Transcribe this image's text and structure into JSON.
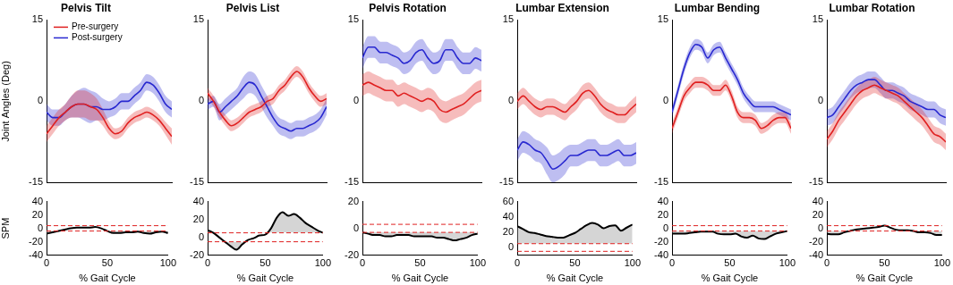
{
  "chart_data": [
    {
      "type": "line",
      "title": "Pelvis Tilt",
      "ylabel": "Joint Angles (Deg)",
      "legend": "upper left",
      "x": [
        0,
        5,
        10,
        15,
        20,
        25,
        30,
        35,
        40,
        45,
        50,
        55,
        60,
        65,
        70,
        75,
        80,
        85,
        90,
        95,
        100
      ],
      "xlim": [
        0,
        100
      ],
      "ylim": [
        -15,
        15
      ],
      "yticks": [
        -15,
        0,
        15
      ],
      "grid": false,
      "tick_labels": "y",
      "series": [
        {
          "name": "Pre-surgery",
          "color": "#e02020",
          "values": [
            -6,
            -4.5,
            -3,
            -2,
            -1,
            -0.5,
            -0.5,
            -1,
            -1.5,
            -3,
            -5,
            -6,
            -5.5,
            -4,
            -3,
            -2.5,
            -2,
            -2.5,
            -3.5,
            -5,
            -6.5
          ],
          "error": [
            1.5,
            1.5,
            1.5,
            1.5,
            2,
            2.5,
            2.5,
            2.5,
            2,
            1.5,
            1.2,
            1,
            1,
            1,
            1,
            1,
            1,
            1,
            1,
            1.2,
            1.5
          ]
        },
        {
          "name": "Post-surgery",
          "color": "#2828d0",
          "values": [
            -2,
            -3,
            -3,
            -2,
            -1,
            -0.5,
            -0.5,
            -1,
            -1,
            -1.5,
            -1.5,
            -1,
            0,
            0,
            1,
            2,
            3.5,
            3,
            1.5,
            -0.5,
            -1.5
          ],
          "error": [
            1.5,
            1.5,
            1.5,
            1.5,
            2,
            2.5,
            3,
            3,
            2.5,
            2,
            1.5,
            1.5,
            1.5,
            1.5,
            1.5,
            1.5,
            1.5,
            1.5,
            1.5,
            1.5,
            1.5
          ]
        }
      ]
    },
    {
      "type": "line",
      "title": "Pelvis List",
      "x": [
        0,
        5,
        10,
        15,
        20,
        25,
        30,
        35,
        40,
        45,
        50,
        55,
        60,
        65,
        70,
        75,
        80,
        85,
        90,
        95,
        100
      ],
      "xlim": [
        0,
        100
      ],
      "ylim": [
        -15,
        15
      ],
      "yticks": [
        -15,
        0,
        15
      ],
      "grid": false,
      "tick_labels": "y",
      "series": [
        {
          "color": "#e02020",
          "values": [
            1.5,
            0,
            -2,
            -3.5,
            -4.5,
            -4,
            -3,
            -2,
            -1.5,
            -1,
            0,
            0.5,
            2,
            3,
            4.5,
            5.5,
            4.5,
            2.5,
            1,
            0,
            0.5
          ],
          "error": [
            1,
            1,
            1,
            1,
            1,
            1,
            1,
            1,
            1,
            1,
            1,
            1,
            1,
            1,
            1,
            1,
            1,
            1,
            1,
            1,
            1
          ]
        },
        {
          "color": "#2828d0",
          "values": [
            -0.5,
            0,
            -2,
            -1,
            0,
            1,
            2.5,
            3.5,
            3,
            1,
            -1,
            -3,
            -4.5,
            -5,
            -5.5,
            -5,
            -5,
            -4.5,
            -4,
            -3,
            -1
          ],
          "error": [
            1,
            1,
            1.5,
            1.5,
            1.5,
            1.5,
            2,
            2,
            2,
            2,
            2,
            1.5,
            1.5,
            1.5,
            1.5,
            1.5,
            1.5,
            1.5,
            1.5,
            1.5,
            1.5
          ]
        }
      ]
    },
    {
      "type": "line",
      "title": "Pelvis Rotation",
      "x": [
        0,
        5,
        10,
        15,
        20,
        25,
        30,
        35,
        40,
        45,
        50,
        55,
        60,
        65,
        70,
        75,
        80,
        85,
        90,
        95,
        100
      ],
      "xlim": [
        0,
        100
      ],
      "ylim": [
        -15,
        15
      ],
      "yticks": [
        -15,
        0,
        15
      ],
      "grid": false,
      "tick_labels": "y",
      "series": [
        {
          "color": "#e02020",
          "values": [
            3,
            3.5,
            3,
            2.5,
            2,
            2,
            1,
            1.5,
            1,
            0.5,
            0,
            0.5,
            0,
            -1.5,
            -2,
            -1.5,
            -1,
            -0.5,
            0.5,
            1.5,
            2
          ],
          "error": [
            2,
            2,
            2,
            2,
            2,
            2,
            2,
            2,
            2,
            2,
            2,
            2,
            2,
            2,
            2,
            2,
            2,
            2,
            2,
            2,
            2
          ]
        },
        {
          "color": "#2828d0",
          "values": [
            8,
            10,
            10,
            9,
            9,
            8.5,
            8,
            7,
            7.5,
            9,
            9.5,
            8,
            7,
            7.5,
            9.5,
            9.5,
            8,
            7,
            7,
            8,
            7.5
          ],
          "error": [
            2,
            2,
            2,
            2,
            2,
            2,
            2,
            2,
            2,
            2,
            2,
            2,
            2,
            2,
            2,
            2,
            2,
            2,
            2,
            2,
            2
          ]
        }
      ]
    },
    {
      "type": "line",
      "title": "Lumbar Extension",
      "x": [
        0,
        5,
        10,
        15,
        20,
        25,
        30,
        35,
        40,
        45,
        50,
        55,
        60,
        65,
        70,
        75,
        80,
        85,
        90,
        95,
        100
      ],
      "xlim": [
        0,
        100
      ],
      "ylim": [
        -15,
        15
      ],
      "yticks": [
        -15,
        0,
        15
      ],
      "grid": false,
      "tick_labels": "y",
      "series": [
        {
          "color": "#e02020",
          "values": [
            0,
            1,
            0,
            -1,
            -1.5,
            -1,
            -1,
            -1.5,
            -2,
            -1,
            0,
            1.5,
            2,
            1,
            -0.5,
            -1.5,
            -2,
            -2.5,
            -2.5,
            -1.5,
            -0.5
          ],
          "error": [
            1.5,
            1.5,
            1.5,
            1.5,
            1.5,
            1.5,
            1.5,
            1.5,
            1.5,
            1.5,
            1.5,
            1.5,
            1.5,
            1.5,
            1.5,
            1.5,
            1.5,
            1.5,
            1.5,
            1.5,
            1.5
          ]
        },
        {
          "color": "#2828d0",
          "values": [
            -9,
            -7.5,
            -8,
            -9,
            -9.5,
            -11,
            -12.5,
            -12,
            -11,
            -10,
            -10,
            -9.5,
            -9,
            -9,
            -10,
            -10,
            -9.5,
            -9,
            -10,
            -10,
            -9.5
          ],
          "error": [
            2,
            2,
            2,
            2,
            2,
            2.5,
            2.5,
            2.5,
            2.5,
            2,
            2,
            2,
            2,
            2,
            2,
            2,
            2,
            2,
            2,
            2,
            2
          ]
        }
      ]
    },
    {
      "type": "line",
      "title": "Lumbar Bending",
      "x": [
        0,
        5,
        10,
        15,
        20,
        25,
        30,
        35,
        40,
        45,
        50,
        55,
        60,
        65,
        70,
        75,
        80,
        85,
        90,
        95,
        100
      ],
      "xlim": [
        0,
        100
      ],
      "ylim": [
        -15,
        15
      ],
      "yticks": [
        -15,
        0,
        15
      ],
      "grid": false,
      "tick_labels": "y",
      "series": [
        {
          "color": "#e02020",
          "values": [
            -5,
            -2,
            1,
            2.5,
            3.5,
            3.5,
            3,
            2,
            2,
            3,
            1,
            -2,
            -3,
            -3,
            -3.5,
            -5,
            -4.5,
            -3.5,
            -3,
            -3,
            -5
          ],
          "error": [
            1,
            1,
            1,
            1,
            1,
            1,
            1,
            1,
            1,
            1,
            1,
            1,
            1,
            1,
            1,
            1,
            1,
            1,
            1,
            1,
            1
          ]
        },
        {
          "color": "#2828d0",
          "values": [
            -2,
            2,
            6,
            9,
            10.5,
            10,
            8,
            9.5,
            10,
            8,
            6,
            4,
            1.5,
            0,
            -1,
            -1,
            -1,
            -1,
            -1.5,
            -2,
            -2.5
          ],
          "error": [
            1,
            1,
            1,
            1,
            1,
            1,
            1,
            1,
            1,
            1,
            1,
            1,
            1,
            1,
            1,
            1,
            1,
            1,
            1,
            1,
            1
          ]
        }
      ]
    },
    {
      "type": "line",
      "title": "Lumbar Rotation",
      "x": [
        0,
        5,
        10,
        15,
        20,
        25,
        30,
        35,
        40,
        45,
        50,
        55,
        60,
        65,
        70,
        75,
        80,
        85,
        90,
        95,
        100
      ],
      "xlim": [
        0,
        100
      ],
      "ylim": [
        -15,
        15
      ],
      "yticks": [
        -15,
        0,
        15
      ],
      "grid": false,
      "tick_labels": "y",
      "series": [
        {
          "color": "#e02020",
          "values": [
            -7,
            -5.5,
            -3.5,
            -2,
            -0.5,
            1,
            2,
            2.5,
            3,
            2.5,
            2,
            1.5,
            1,
            0,
            -1,
            -2,
            -3,
            -4.5,
            -6,
            -6.5,
            -7.5
          ],
          "error": [
            1.5,
            1.5,
            1.5,
            1.5,
            1.5,
            1.5,
            1.5,
            1.5,
            1.5,
            1.5,
            1.5,
            1.5,
            1.5,
            1.5,
            1.5,
            1.5,
            1.5,
            1.5,
            1.5,
            1.5,
            1.5
          ]
        },
        {
          "color": "#2828d0",
          "values": [
            -3,
            -2.5,
            -1,
            0.5,
            2,
            3,
            3.5,
            4,
            4,
            3,
            2,
            2,
            1.5,
            1,
            0,
            -0.5,
            -1,
            -1.5,
            -1.5,
            -2.5,
            -3
          ],
          "error": [
            1.5,
            1.5,
            1.5,
            1.5,
            1.5,
            1.5,
            1.5,
            1.5,
            1.5,
            1.5,
            1.5,
            1.5,
            1.5,
            1.5,
            1.5,
            1.5,
            1.5,
            1.5,
            1.5,
            1.5,
            1.5
          ]
        }
      ]
    },
    {
      "type": "line",
      "ylabel": "SPM",
      "xlabel": "% Gait Cycle",
      "x": [
        0,
        5,
        10,
        15,
        20,
        25,
        30,
        35,
        40,
        45,
        50,
        55,
        60,
        65,
        70,
        75,
        80,
        85,
        90,
        95,
        100
      ],
      "xlim": [
        0,
        100
      ],
      "xticks": [
        0,
        50,
        100
      ],
      "ylim": [
        -40,
        40
      ],
      "yticks": [
        -40,
        -20,
        0,
        20,
        40
      ],
      "grid": false,
      "threshold": 4,
      "series": [
        {
          "color": "#000000",
          "values": [
            -8,
            -6,
            -4,
            -2,
            0,
            1,
            1,
            1,
            2,
            0,
            -4,
            -7,
            -7,
            -6,
            -6,
            -5,
            -7,
            -8,
            -6,
            -5,
            -7
          ]
        }
      ]
    },
    {
      "type": "line",
      "xlabel": "% Gait Cycle",
      "x": [
        0,
        5,
        10,
        15,
        20,
        25,
        30,
        35,
        40,
        45,
        50,
        55,
        60,
        65,
        70,
        75,
        80,
        85,
        90,
        95,
        100
      ],
      "xlim": [
        0,
        100
      ],
      "xticks": [
        0,
        50,
        100
      ],
      "ylim": [
        -20,
        40
      ],
      "yticks": [
        -20,
        0,
        20,
        40
      ],
      "grid": false,
      "threshold": 5,
      "series": [
        {
          "color": "#000000",
          "values": [
            8,
            5,
            0,
            -5,
            -10,
            -14,
            -8,
            -3,
            -1,
            2,
            3,
            10,
            22,
            28,
            24,
            26,
            22,
            16,
            12,
            8,
            5
          ]
        }
      ]
    },
    {
      "type": "line",
      "xlabel": "% Gait Cycle",
      "x": [
        0,
        5,
        10,
        15,
        20,
        25,
        30,
        35,
        40,
        45,
        50,
        55,
        60,
        65,
        70,
        75,
        80,
        85,
        90,
        95,
        100
      ],
      "xlim": [
        0,
        100
      ],
      "xticks": [
        0,
        50,
        100
      ],
      "ylim": [
        -20,
        20
      ],
      "yticks": [
        -20,
        0,
        20
      ],
      "grid": false,
      "threshold": 3,
      "series": [
        {
          "color": "#000000",
          "values": [
            -3,
            -4,
            -5,
            -5,
            -6,
            -6,
            -5,
            -5,
            -5,
            -6,
            -6,
            -6,
            -6,
            -7,
            -7,
            -8,
            -9,
            -8,
            -7,
            -5,
            -4
          ]
        }
      ]
    },
    {
      "type": "line",
      "xlabel": "% Gait Cycle",
      "x": [
        0,
        5,
        10,
        15,
        20,
        25,
        30,
        35,
        40,
        45,
        50,
        55,
        60,
        65,
        70,
        75,
        80,
        85,
        90,
        95,
        100
      ],
      "xlim": [
        0,
        100
      ],
      "xticks": [
        0,
        50,
        100
      ],
      "ylim": [
        -10,
        60
      ],
      "yticks": [
        0,
        20,
        40,
        60
      ],
      "grid": false,
      "threshold": 5,
      "series": [
        {
          "color": "#000000",
          "values": [
            28,
            24,
            20,
            19,
            17,
            15,
            14,
            13,
            13,
            16,
            19,
            24,
            29,
            32,
            30,
            25,
            28,
            29,
            22,
            26,
            30
          ]
        }
      ]
    },
    {
      "type": "line",
      "xlabel": "% Gait Cycle",
      "x": [
        0,
        5,
        10,
        15,
        20,
        25,
        30,
        35,
        40,
        45,
        50,
        55,
        60,
        65,
        70,
        75,
        80,
        85,
        90,
        95,
        100
      ],
      "xlim": [
        0,
        100
      ],
      "xticks": [
        0,
        50,
        100
      ],
      "ylim": [
        -40,
        40
      ],
      "yticks": [
        -40,
        -20,
        0,
        20,
        40
      ],
      "grid": false,
      "threshold": 4,
      "series": [
        {
          "color": "#000000",
          "values": [
            -8,
            -8,
            -8,
            -7,
            -6,
            -5,
            -5,
            -5,
            -8,
            -9,
            -9,
            -8,
            -12,
            -14,
            -11,
            -15,
            -16,
            -12,
            -8,
            -6,
            -4
          ]
        }
      ]
    },
    {
      "type": "line",
      "xlabel": "% Gait Cycle",
      "x": [
        0,
        5,
        10,
        15,
        20,
        25,
        30,
        35,
        40,
        45,
        50,
        55,
        60,
        65,
        70,
        75,
        80,
        85,
        90,
        95,
        100
      ],
      "xlim": [
        0,
        100
      ],
      "xticks": [
        0,
        50,
        100
      ],
      "ylim": [
        -40,
        40
      ],
      "yticks": [
        -40,
        -20,
        0,
        20,
        40
      ],
      "grid": false,
      "threshold": 4,
      "series": [
        {
          "color": "#000000",
          "values": [
            -8,
            -9,
            -9,
            -6,
            -4,
            -2,
            -1,
            0,
            1,
            2,
            4,
            1,
            -2,
            -3,
            -3,
            -4,
            -6,
            -6,
            -7,
            -10,
            -10
          ]
        }
      ]
    }
  ]
}
